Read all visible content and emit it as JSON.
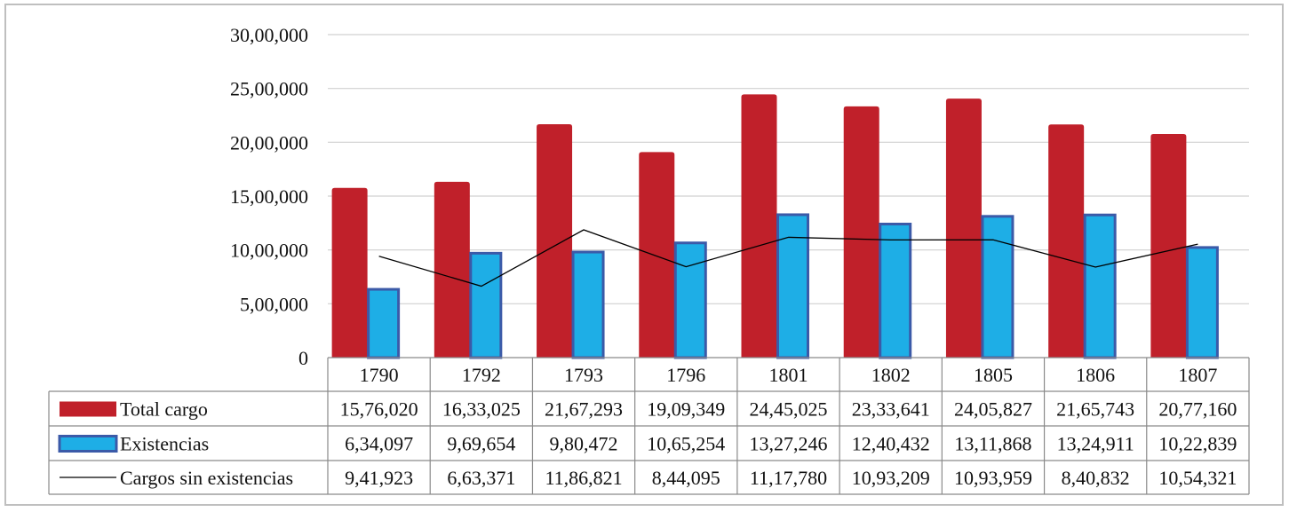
{
  "chart_data": {
    "type": "bar",
    "title": "",
    "xlabel": "",
    "ylabel": "",
    "categories": [
      "1790",
      "1792",
      "1793",
      "1796",
      "1801",
      "1802",
      "1805",
      "1806",
      "1807"
    ],
    "ylim": [
      0,
      3000000
    ],
    "y_ticks": [
      0,
      500000,
      1000000,
      1500000,
      2000000,
      2500000,
      3000000
    ],
    "y_tick_labels": [
      "0",
      "5,00,000",
      "10,00,000",
      "15,00,000",
      "20,00,000",
      "25,00,000",
      "30,00,000"
    ],
    "grid": true,
    "legend_placement": "data-table-left",
    "series": [
      {
        "name": "Total cargo",
        "kind": "bar",
        "color": "#c0202a",
        "values": [
          1576020,
          1633025,
          2167293,
          1909349,
          2445025,
          2333641,
          2405827,
          2165743,
          2077160
        ],
        "labels": [
          "15,76,020",
          "16,33,025",
          "21,67,293",
          "19,09,349",
          "24,45,025",
          "23,33,641",
          "24,05,827",
          "21,65,743",
          "20,77,160"
        ]
      },
      {
        "name": "Existencias",
        "kind": "bar",
        "color": "#1eaee6",
        "border_color": "#3b5aa8",
        "values": [
          634097,
          969654,
          980472,
          1065254,
          1327246,
          1240432,
          1311868,
          1324911,
          1022839
        ],
        "labels": [
          "6,34,097",
          "9,69,654",
          "9,80,472",
          "10,65,254",
          "13,27,246",
          "12,40,432",
          "13,11,868",
          "13,24,911",
          "10,22,839"
        ]
      },
      {
        "name": "Cargos sin existencias",
        "kind": "line",
        "color": "#000000",
        "values": [
          941923,
          663371,
          1186821,
          844095,
          1117780,
          1093209,
          1093959,
          840832,
          1054321
        ],
        "labels": [
          "9,41,923",
          "6,63,371",
          "11,86,821",
          "8,44,095",
          "11,17,780",
          "10,93,209",
          "10,93,959",
          "8,40,832",
          "10,54,321"
        ]
      }
    ]
  }
}
